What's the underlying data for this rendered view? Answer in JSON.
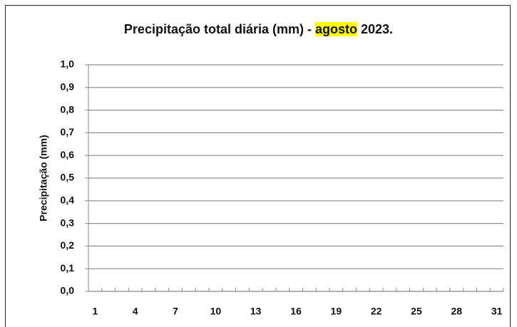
{
  "chart_data": {
    "type": "bar",
    "title": "Precipitação total diária (mm) - agosto 2023.",
    "title_highlight": "agosto",
    "highlight_color": "#ffff00",
    "y_label": "Precipitação (mm)",
    "categories": [
      "1",
      null,
      null,
      "4",
      null,
      null,
      "7",
      null,
      null,
      "10",
      null,
      null,
      "13",
      null,
      null,
      "16",
      null,
      null,
      "19",
      null,
      null,
      "22",
      null,
      null,
      "25",
      null,
      null,
      "28",
      null,
      null,
      "31"
    ],
    "ylim": [
      0,
      1
    ],
    "yticks": [
      {
        "value": 0,
        "label": "0,0"
      },
      {
        "value": 0.1,
        "label": "0,1"
      },
      {
        "value": 0.2,
        "label": "0,2"
      },
      {
        "value": 0.3,
        "label": "0,3"
      },
      {
        "value": 0.4,
        "label": "0,4"
      },
      {
        "value": 0.5,
        "label": "0,5"
      },
      {
        "value": 0.6,
        "label": "0,6"
      },
      {
        "value": 0.7,
        "label": "0,7"
      },
      {
        "value": 0.8,
        "label": "0,8"
      },
      {
        "value": 0.9,
        "label": "0,9"
      },
      {
        "value": 1,
        "label": "1,0"
      }
    ],
    "grid": true
  }
}
